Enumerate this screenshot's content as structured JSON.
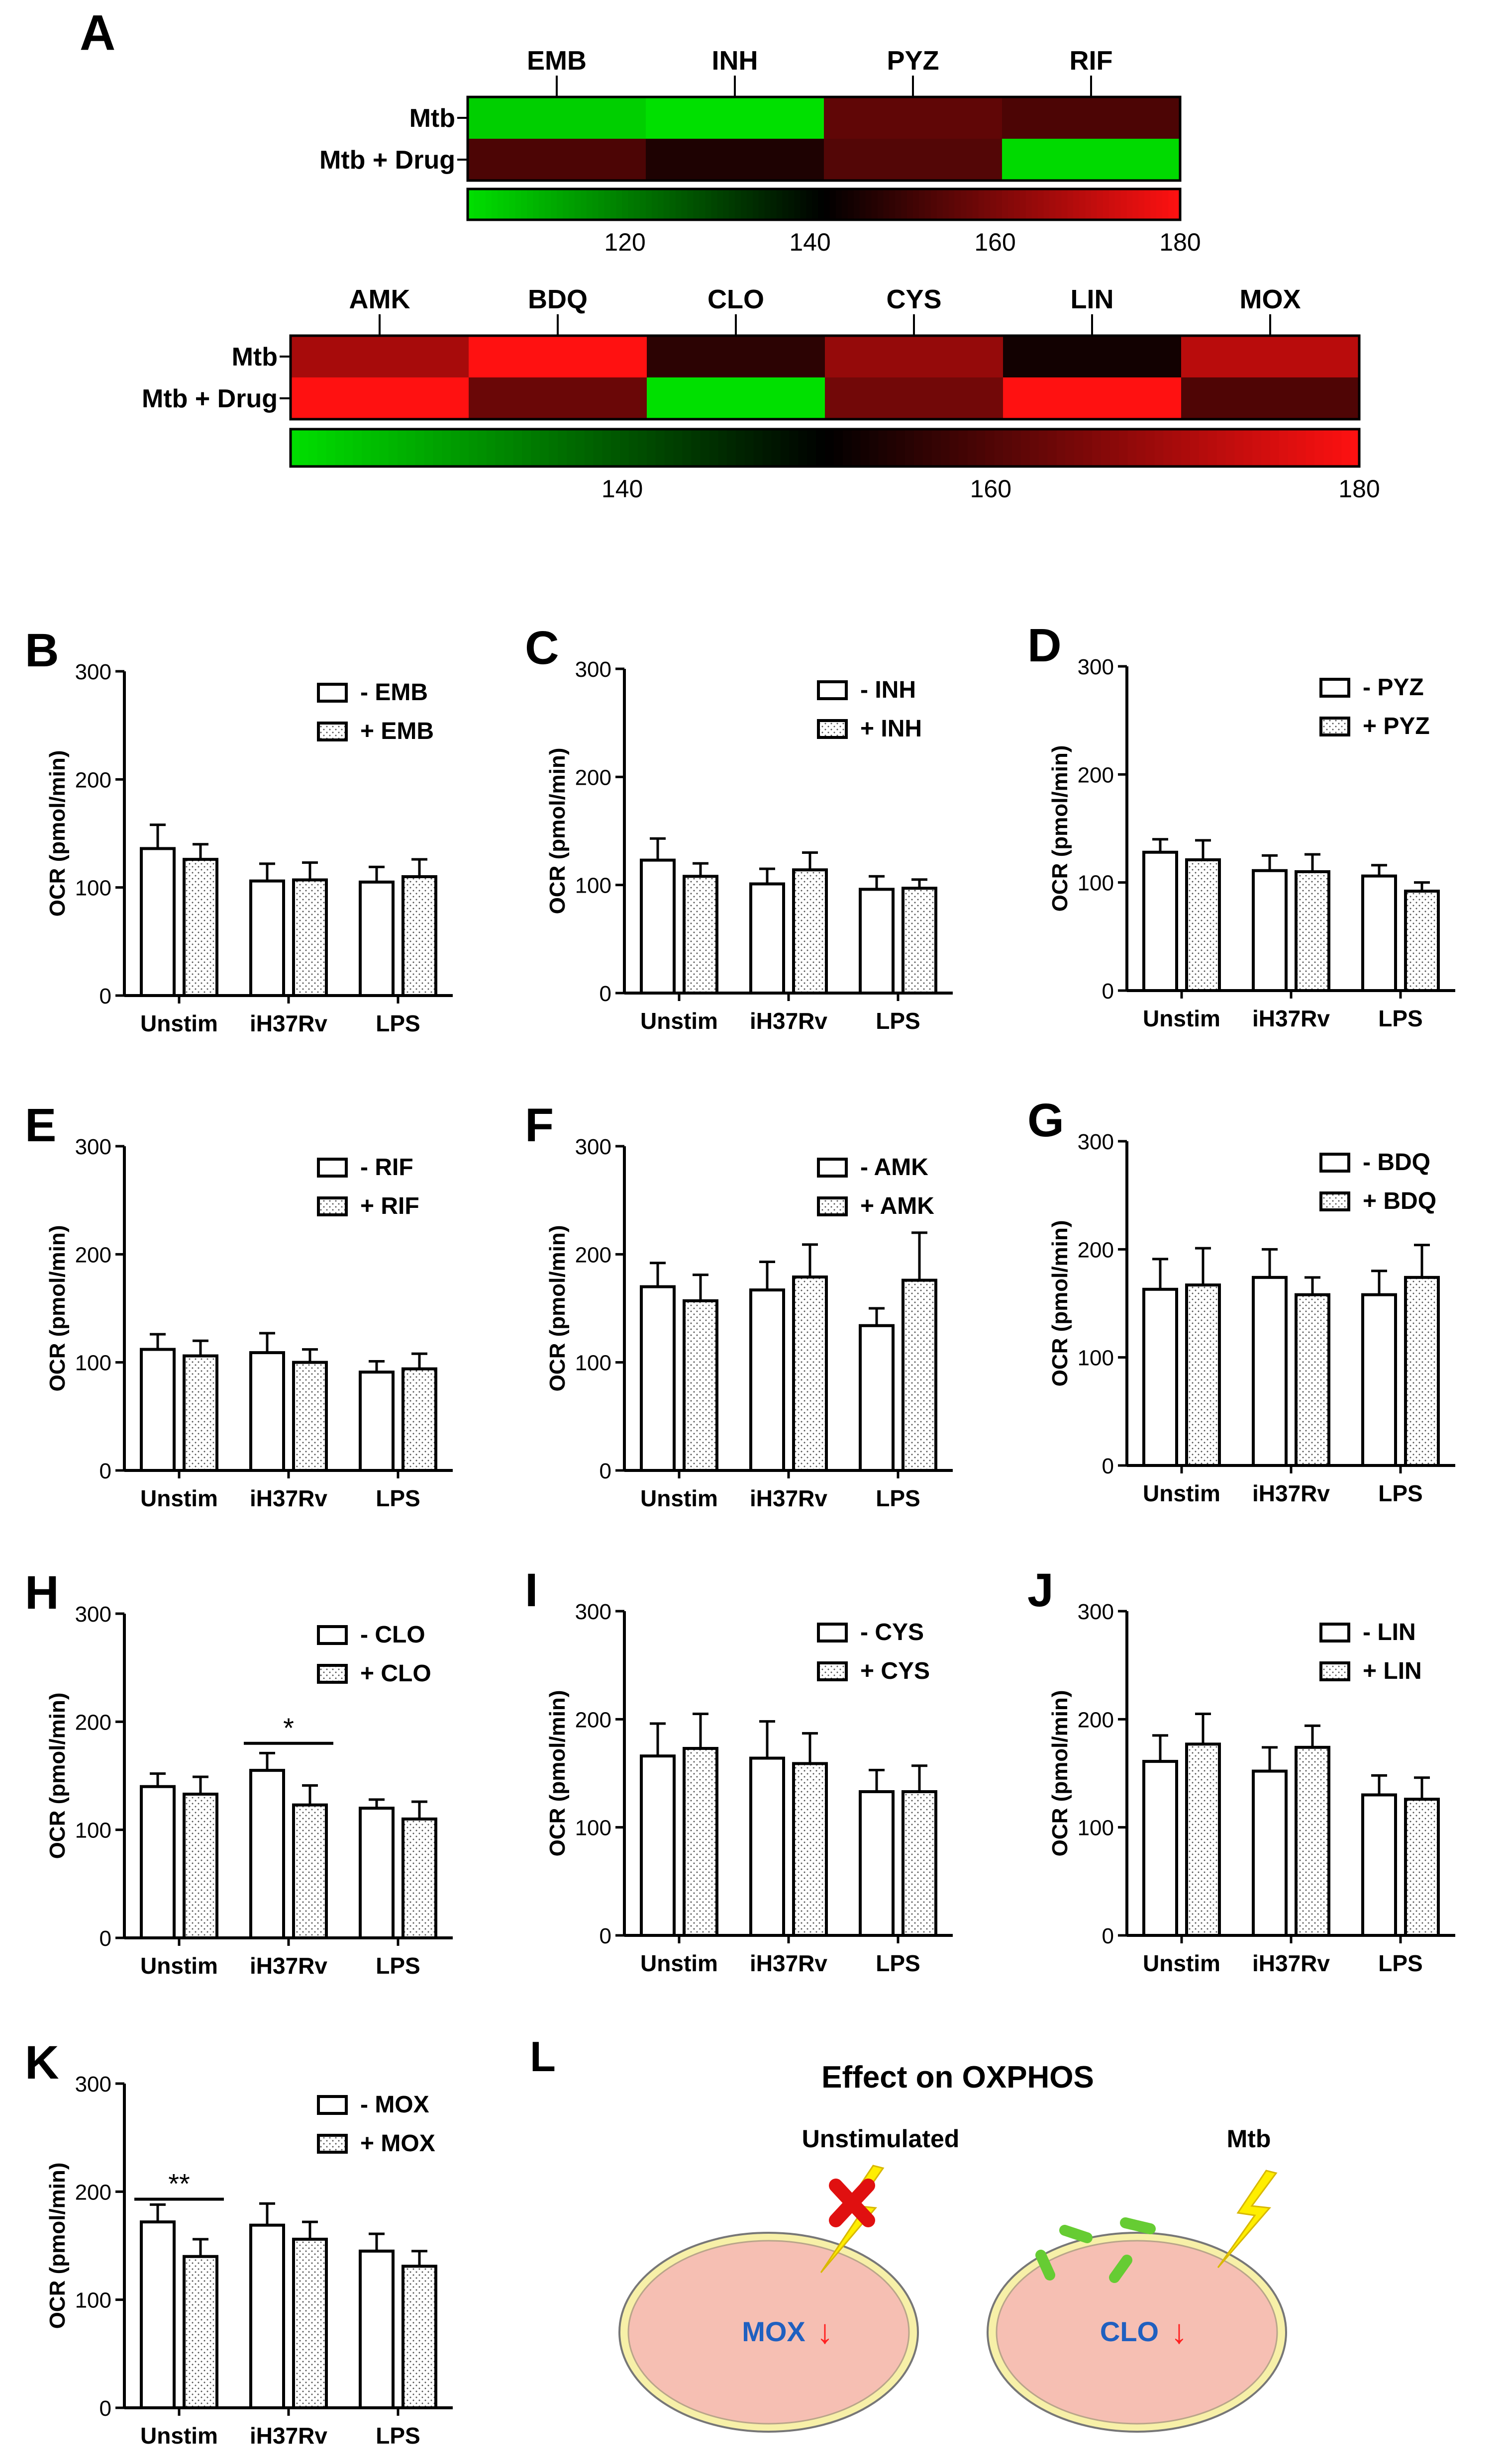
{
  "panel_labels": {
    "A": "A",
    "L": "L"
  },
  "colors": {
    "low": "#00e000",
    "mid": "#000000",
    "high": "#ff1111",
    "axis": "#000000",
    "cell_body": "#f6bfb3",
    "cell_rim": "#f7f0a8",
    "arrow": "#ff2020",
    "drug_text": "#2060c0",
    "bolt": "#ffee00",
    "cross": "#e01010",
    "drug_particle": "#66cc33"
  },
  "chart_data": [
    {
      "id": "A1",
      "type": "heatmap",
      "columns": [
        "EMB",
        "INH",
        "PYZ",
        "RIF"
      ],
      "rows": [
        "Mtb",
        "Mtb + Drug"
      ],
      "values": [
        [
          106,
          103,
          156,
          153
        ],
        [
          153,
          146,
          154,
          104
        ]
      ],
      "scale": {
        "min": 103,
        "max": 180,
        "ticks": [
          120,
          140,
          160,
          180
        ]
      }
    },
    {
      "id": "A2",
      "type": "heatmap",
      "columns": [
        "AMK",
        "BDQ",
        "CLO",
        "CYS",
        "LIN",
        "MOX"
      ],
      "rows": [
        "Mtb",
        "Mtb + Drug"
      ],
      "values": [
        [
          170,
          180,
          156,
          168,
          153,
          172
        ],
        [
          180,
          163,
          122,
          164,
          180,
          160
        ]
      ],
      "scale": {
        "min": 122,
        "max": 180,
        "ticks": [
          140,
          160,
          180
        ]
      }
    },
    {
      "id": "B",
      "label": "B",
      "type": "bar",
      "ylabel": "OCR (pmol/min)",
      "ylim": [
        0,
        300
      ],
      "yticks": [
        0,
        100,
        200,
        300
      ],
      "categories": [
        "Unstim",
        "iH37Rv",
        "LPS"
      ],
      "legend": [
        "- EMB",
        "+ EMB"
      ],
      "series": [
        {
          "name": "- EMB",
          "values": [
            136,
            106,
            105
          ],
          "err": [
            22,
            16,
            14
          ]
        },
        {
          "name": "+ EMB",
          "values": [
            126,
            107,
            110
          ],
          "err": [
            14,
            16,
            16
          ]
        }
      ],
      "sig": []
    },
    {
      "id": "C",
      "label": "C",
      "type": "bar",
      "ylabel": "OCR (pmol/min)",
      "ylim": [
        0,
        300
      ],
      "yticks": [
        0,
        100,
        200,
        300
      ],
      "categories": [
        "Unstim",
        "iH37Rv",
        "LPS"
      ],
      "legend": [
        "- INH",
        "+ INH"
      ],
      "series": [
        {
          "name": "- INH",
          "values": [
            123,
            101,
            96
          ],
          "err": [
            20,
            14,
            12
          ]
        },
        {
          "name": "+ INH",
          "values": [
            108,
            114,
            97
          ],
          "err": [
            12,
            16,
            8
          ]
        }
      ],
      "sig": []
    },
    {
      "id": "D",
      "label": "D",
      "type": "bar",
      "ylabel": "OCR (pmol/min)",
      "ylim": [
        0,
        300
      ],
      "yticks": [
        0,
        100,
        200,
        300
      ],
      "categories": [
        "Unstim",
        "iH37Rv",
        "LPS"
      ],
      "legend": [
        "- PYZ",
        "+ PYZ"
      ],
      "series": [
        {
          "name": "- PYZ",
          "values": [
            128,
            111,
            106
          ],
          "err": [
            12,
            14,
            10
          ]
        },
        {
          "name": "+ PYZ",
          "values": [
            121,
            110,
            92
          ],
          "err": [
            18,
            16,
            8
          ]
        }
      ],
      "sig": []
    },
    {
      "id": "E",
      "label": "E",
      "type": "bar",
      "ylabel": "OCR (pmol/min)",
      "ylim": [
        0,
        300
      ],
      "yticks": [
        0,
        100,
        200,
        300
      ],
      "categories": [
        "Unstim",
        "iH37Rv",
        "LPS"
      ],
      "legend": [
        "- RIF",
        "+ RIF"
      ],
      "series": [
        {
          "name": "- RIF",
          "values": [
            112,
            109,
            91
          ],
          "err": [
            14,
            18,
            10
          ]
        },
        {
          "name": "+ RIF",
          "values": [
            106,
            100,
            94
          ],
          "err": [
            14,
            12,
            14
          ]
        }
      ],
      "sig": []
    },
    {
      "id": "F",
      "label": "F",
      "type": "bar",
      "ylabel": "OCR (pmol/min)",
      "ylim": [
        0,
        300
      ],
      "yticks": [
        0,
        100,
        200,
        300
      ],
      "categories": [
        "Unstim",
        "iH37Rv",
        "LPS"
      ],
      "legend": [
        "- AMK",
        "+ AMK"
      ],
      "series": [
        {
          "name": "- AMK",
          "values": [
            170,
            167,
            134
          ],
          "err": [
            22,
            26,
            16
          ]
        },
        {
          "name": "+ AMK",
          "values": [
            157,
            179,
            176
          ],
          "err": [
            24,
            30,
            44
          ]
        }
      ],
      "sig": []
    },
    {
      "id": "G",
      "label": "G",
      "type": "bar",
      "ylabel": "OCR (pmol/min)",
      "ylim": [
        0,
        300
      ],
      "yticks": [
        0,
        100,
        200,
        300
      ],
      "categories": [
        "Unstim",
        "iH37Rv",
        "LPS"
      ],
      "legend": [
        "- BDQ",
        "+ BDQ"
      ],
      "series": [
        {
          "name": "- BDQ",
          "values": [
            163,
            174,
            158
          ],
          "err": [
            28,
            26,
            22
          ]
        },
        {
          "name": "+ BDQ",
          "values": [
            167,
            158,
            174
          ],
          "err": [
            34,
            16,
            30
          ]
        }
      ],
      "sig": []
    },
    {
      "id": "H",
      "label": "H",
      "type": "bar",
      "ylabel": "OCR (pmol/min)",
      "ylim": [
        0,
        300
      ],
      "yticks": [
        0,
        100,
        200,
        300
      ],
      "categories": [
        "Unstim",
        "iH37Rv",
        "LPS"
      ],
      "legend": [
        "- CLO",
        "+ CLO"
      ],
      "series": [
        {
          "name": "- CLO",
          "values": [
            140,
            155,
            120
          ],
          "err": [
            12,
            16,
            8
          ]
        },
        {
          "name": "+ CLO",
          "values": [
            133,
            123,
            110
          ],
          "err": [
            16,
            18,
            16
          ]
        }
      ],
      "sig": [
        {
          "group": 1,
          "text": "*",
          "y": 180
        }
      ]
    },
    {
      "id": "I",
      "label": "I",
      "type": "bar",
      "ylabel": "OCR (pmol/min)",
      "ylim": [
        0,
        300
      ],
      "yticks": [
        0,
        100,
        200,
        300
      ],
      "categories": [
        "Unstim",
        "iH37Rv",
        "LPS"
      ],
      "legend": [
        "- CYS",
        "+ CYS"
      ],
      "series": [
        {
          "name": "- CYS",
          "values": [
            166,
            164,
            133
          ],
          "err": [
            30,
            34,
            20
          ]
        },
        {
          "name": "+ CYS",
          "values": [
            173,
            159,
            133
          ],
          "err": [
            32,
            28,
            24
          ]
        }
      ],
      "sig": []
    },
    {
      "id": "J",
      "label": "J",
      "type": "bar",
      "ylabel": "OCR (pmol/min)",
      "ylim": [
        0,
        300
      ],
      "yticks": [
        0,
        100,
        200,
        300
      ],
      "categories": [
        "Unstim",
        "iH37Rv",
        "LPS"
      ],
      "legend": [
        "- LIN",
        "+ LIN"
      ],
      "series": [
        {
          "name": "- LIN",
          "values": [
            161,
            152,
            130
          ],
          "err": [
            24,
            22,
            18
          ]
        },
        {
          "name": "+ LIN",
          "values": [
            177,
            174,
            126
          ],
          "err": [
            28,
            20,
            20
          ]
        }
      ],
      "sig": []
    },
    {
      "id": "K",
      "label": "K",
      "type": "bar",
      "ylabel": "OCR (pmol/min)",
      "ylim": [
        0,
        300
      ],
      "yticks": [
        0,
        100,
        200,
        300
      ],
      "categories": [
        "Unstim",
        "iH37Rv",
        "LPS"
      ],
      "legend": [
        "- MOX",
        "+ MOX"
      ],
      "series": [
        {
          "name": "- MOX",
          "values": [
            172,
            169,
            145
          ],
          "err": [
            16,
            20,
            16
          ]
        },
        {
          "name": "+ MOX",
          "values": [
            140,
            156,
            131
          ],
          "err": [
            16,
            16,
            14
          ]
        }
      ],
      "sig": [
        {
          "group": 0,
          "text": "**",
          "y": 193
        }
      ]
    }
  ],
  "diagram": {
    "title": "Effect on OXPHOS",
    "left_label": "Unstimulated",
    "right_label": "Mtb",
    "left_drug": "MOX",
    "right_drug": "CLO",
    "arrow_glyph": "↓"
  }
}
